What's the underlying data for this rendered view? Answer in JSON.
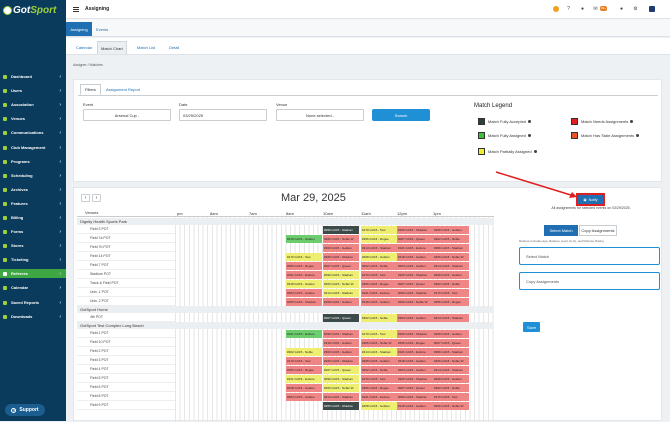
{
  "brand": {
    "name_a": "Got",
    "name_b": "Sport"
  },
  "topbar": {
    "title": "Assigning",
    "notif_count": "99+"
  },
  "sidebar": {
    "items": [
      {
        "label": "Dashboard"
      },
      {
        "label": "Users"
      },
      {
        "label": "Association"
      },
      {
        "label": "Venues"
      },
      {
        "label": "Communications"
      },
      {
        "label": "Club Management"
      },
      {
        "label": "Programs"
      },
      {
        "label": "Scheduling"
      },
      {
        "label": "Archives"
      },
      {
        "label": "Features"
      },
      {
        "label": "Billing"
      },
      {
        "label": "Forms"
      },
      {
        "label": "Stores"
      },
      {
        "label": "Ticketing"
      },
      {
        "label": "Referees"
      },
      {
        "label": "Calendar"
      },
      {
        "label": "Saved Reports"
      },
      {
        "label": "Downloads"
      }
    ],
    "active": "Referees",
    "support": "Support"
  },
  "subtabs": {
    "assigning": "Assigning",
    "events": "Events"
  },
  "viewtabs": [
    "Calendar",
    "Match Chart",
    "Match List",
    "Detail"
  ],
  "breadcrumb": "Assigner  /  Matches",
  "filters": {
    "tab_filters": "Filters",
    "tab_report": "Assignment Report",
    "event_label": "Event",
    "event_value": "Arsenal Cup -",
    "date_label": "Date",
    "date_value": "03/29/2025",
    "venue_label": "Venue",
    "venue_value": "None selected -",
    "search": "Search"
  },
  "legend": {
    "title": "Match Legend",
    "items": [
      {
        "label": "Match Fully Accepted",
        "color": "#2f3e3e"
      },
      {
        "label": "Match Needs Assignments",
        "color": "#e02020"
      },
      {
        "label": "Match Fully Assigned",
        "color": "#3ec03e"
      },
      {
        "label": "Match Has Stale Assignments",
        "color": "#e8512a"
      },
      {
        "label": "Match Partially Assigned",
        "color": "#eeee30"
      }
    ]
  },
  "chart": {
    "date": "Mar 29, 2025",
    "venues_header": "Venues",
    "times": [
      "pm",
      "8am",
      "7am",
      "8am",
      "10am",
      "11am",
      "12pm",
      "1pm"
    ],
    "groups": [
      {
        "name": "Dignity Health Sports Park",
        "venues": [
          "Field 3 POT",
          "Field 7a POT",
          "Field 7b POT",
          "Field 14 POT",
          "Field 7 POT",
          "Stadium POT",
          "Track & Field POT",
          "Univ. 1 POT",
          "Univ. 2 POT"
        ]
      },
      {
        "name": "GotSport Home",
        "venues": [
          "4th POT"
        ]
      },
      {
        "name": "GotSport Test Complex Long Beach",
        "venues": [
          "Field 1 POT",
          "Field 10 POT",
          "Field 2 POT",
          "Field 3 POT",
          "Field 4 POT",
          "Field 5 POT",
          "Field 6 POT",
          "Field 8 POT",
          "Field 9 POT"
        ]
      }
    ],
    "block_texts": [
      "#096 GU15 - Stadium",
      "#170 GU15 - Test",
      "#205 GU15 - Shadow",
      "#408 GU15 - Golden",
      "#318 GU15 - Golden",
      "#406 GU15 - Noble W",
      "#456 GU15 - Rogue",
      "#007 GU15 - Queen",
      "#302 GU15 - Noble",
      "#363 GU15 - Golden",
      "#414 GU15 - Stadium",
      "#101 GU15 - Endure"
    ]
  },
  "assign": {
    "notify": "Notify",
    "note": "All assignments for selected events on 03/29/2025.",
    "tab_select": "Select Match",
    "tab_copy": "Copy Assignments",
    "hint": "Referee Includes age, Referee Level (A-G), and Referee Rating",
    "select_match": "Select Match",
    "copy_assignments": "Copy Assignments",
    "save": "Save"
  }
}
